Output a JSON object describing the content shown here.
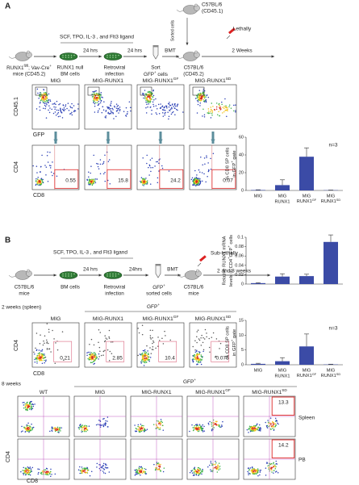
{
  "panel_a": {
    "label": "A",
    "recipient_1": [
      "C57BL/6",
      "(CD45.1)"
    ],
    "sorted": "Sorted cells",
    "conditioning": "Lethally",
    "cytokines": "SCF, TPO, IL-3 , and Flt3 ligand",
    "arrow_labels": [
      "24 hrs",
      "24 hrs",
      "BMT",
      "2 Weeks"
    ],
    "step_labels": [
      [
        [
          "RUNX1",
          {
            "sup": "fl/fl"
          },
          "; Vav-Cre",
          {
            "sup": "+"
          }
        ],
        "mice (CD45.2)"
      ],
      [
        "RUNX1 null",
        "BM cells"
      ],
      [
        "Retroviral",
        "infection"
      ],
      [
        "Sort",
        [
          "GFP",
          {
            "sup": "+"
          },
          " cells"
        ]
      ],
      [
        "C57BL/6",
        "(CD45.2)"
      ]
    ],
    "plot_titles": [
      "MIG",
      "MIG-RUNX1",
      [
        "MIG-RUNX1",
        {
          "sup": "GF"
        }
      ],
      [
        "MIG-RUNX1",
        {
          "sup": "SD"
        }
      ]
    ],
    "row1_axes": {
      "y": "CD45.1",
      "x": "GFP"
    },
    "row2_axes": {
      "y": "CD4",
      "x": "CD8"
    },
    "gate_values": [
      0.55,
      15.8,
      24.2,
      0.07
    ]
  },
  "panel_b": {
    "label": "B",
    "cytokines": "SCF, TPO, IL-3 , and Flt3 ligand",
    "arrow_labels": [
      "24 hrs",
      "24hrs",
      "BMT",
      "2 and 8 weeks"
    ],
    "conditioning": "Sub-lethally",
    "step_labels": [
      [
        "C57BL/6",
        "mice"
      ],
      [
        "BM cells"
      ],
      [
        "Retroviral",
        "infection"
      ],
      [
        [
          "GFP",
          {
            "sup": "+"
          }
        ],
        "sorted cells"
      ],
      [
        "C57BL/6",
        "mice"
      ]
    ],
    "week2": {
      "title": "2 weeks (spleen)",
      "group": [
        "GFP",
        {
          "sup": "+"
        }
      ],
      "plot_titles": [
        "MIG",
        "MIG-RUNX1",
        [
          "MIG-RUNX1",
          {
            "sup": "GF"
          }
        ],
        [
          "MIG-RUNX1",
          {
            "sup": "SD"
          }
        ]
      ],
      "axes": {
        "y": "CD4",
        "x": "CD8"
      },
      "gate_values": [
        0.21,
        2.85,
        10.4,
        0.075
      ]
    },
    "week8": {
      "title": "8 weeks",
      "group": [
        "GFP",
        {
          "sup": "+"
        }
      ],
      "plot_titles": [
        "WT",
        "MIG",
        "MIG-RUNX1",
        [
          "MIG-RUNX1",
          {
            "sup": "GF"
          }
        ],
        [
          "MIG-RUNX1",
          {
            "sup": "SD"
          }
        ]
      ],
      "rows": [
        "Spleen",
        "PB"
      ],
      "axes": {
        "y": "CD4",
        "x": "CD8"
      },
      "gate_values": [
        13.3,
        14.2
      ]
    }
  },
  "chart_data": [
    {
      "type": "bar",
      "y_label": [
        "% CD8 SP cells",
        [
          "in GFP",
          {
            "sup": "+"
          },
          " gate"
        ]
      ],
      "categories": [
        [
          "MIG"
        ],
        [
          "MIG",
          "RUNX1"
        ],
        [
          "MIG",
          [
            "RUNX1",
            {
              "sup": "GF"
            }
          ]
        ],
        [
          "MIG",
          [
            "RUNX1",
            {
              "sup": "SD"
            }
          ]
        ]
      ],
      "values": [
        0.5,
        6,
        38,
        0.3
      ],
      "errors": [
        0.3,
        6,
        10,
        0.2
      ],
      "color": "#3b4ba6",
      "ylim": [
        0,
        60
      ],
      "yticks": [
        0,
        20,
        40,
        60
      ],
      "annotation": "n=3"
    },
    {
      "type": "bar",
      "y_label": [
        "Relative RUNX1 mRNA",
        [
          "levels in CD4",
          {
            "sup": "+"
          },
          "GFP",
          {
            "sup": "+"
          },
          " cells"
        ]
      ],
      "values": [
        0.002,
        0.016,
        0.017,
        0.09
      ],
      "errors": [
        0.001,
        0.006,
        0.004,
        0.015
      ],
      "color": "#3b4ba6",
      "ylim": [
        0,
        0.1
      ],
      "yticks": [
        0,
        0.02,
        0.04,
        0.06,
        0.08,
        0.1
      ]
    },
    {
      "type": "bar",
      "y_label": [
        "% CD8 SP cells",
        [
          "in GFP",
          {
            "sup": "+"
          },
          " gate"
        ]
      ],
      "categories": [
        [
          "MIG"
        ],
        [
          "MIG",
          "RUNX1"
        ],
        [
          "MIG",
          [
            "RUNX1",
            {
              "sup": "GF"
            }
          ]
        ],
        [
          "MIG",
          [
            "RUNX1",
            {
              "sup": "SD"
            }
          ]
        ]
      ],
      "values": [
        0.3,
        1.2,
        6.2,
        0.1
      ],
      "errors": [
        0.2,
        1.2,
        4.2,
        0.1
      ],
      "color": "#3b4ba6",
      "ylim": [
        0,
        15
      ],
      "yticks": [
        0,
        5,
        10,
        15
      ],
      "annotation": "n=3"
    }
  ]
}
